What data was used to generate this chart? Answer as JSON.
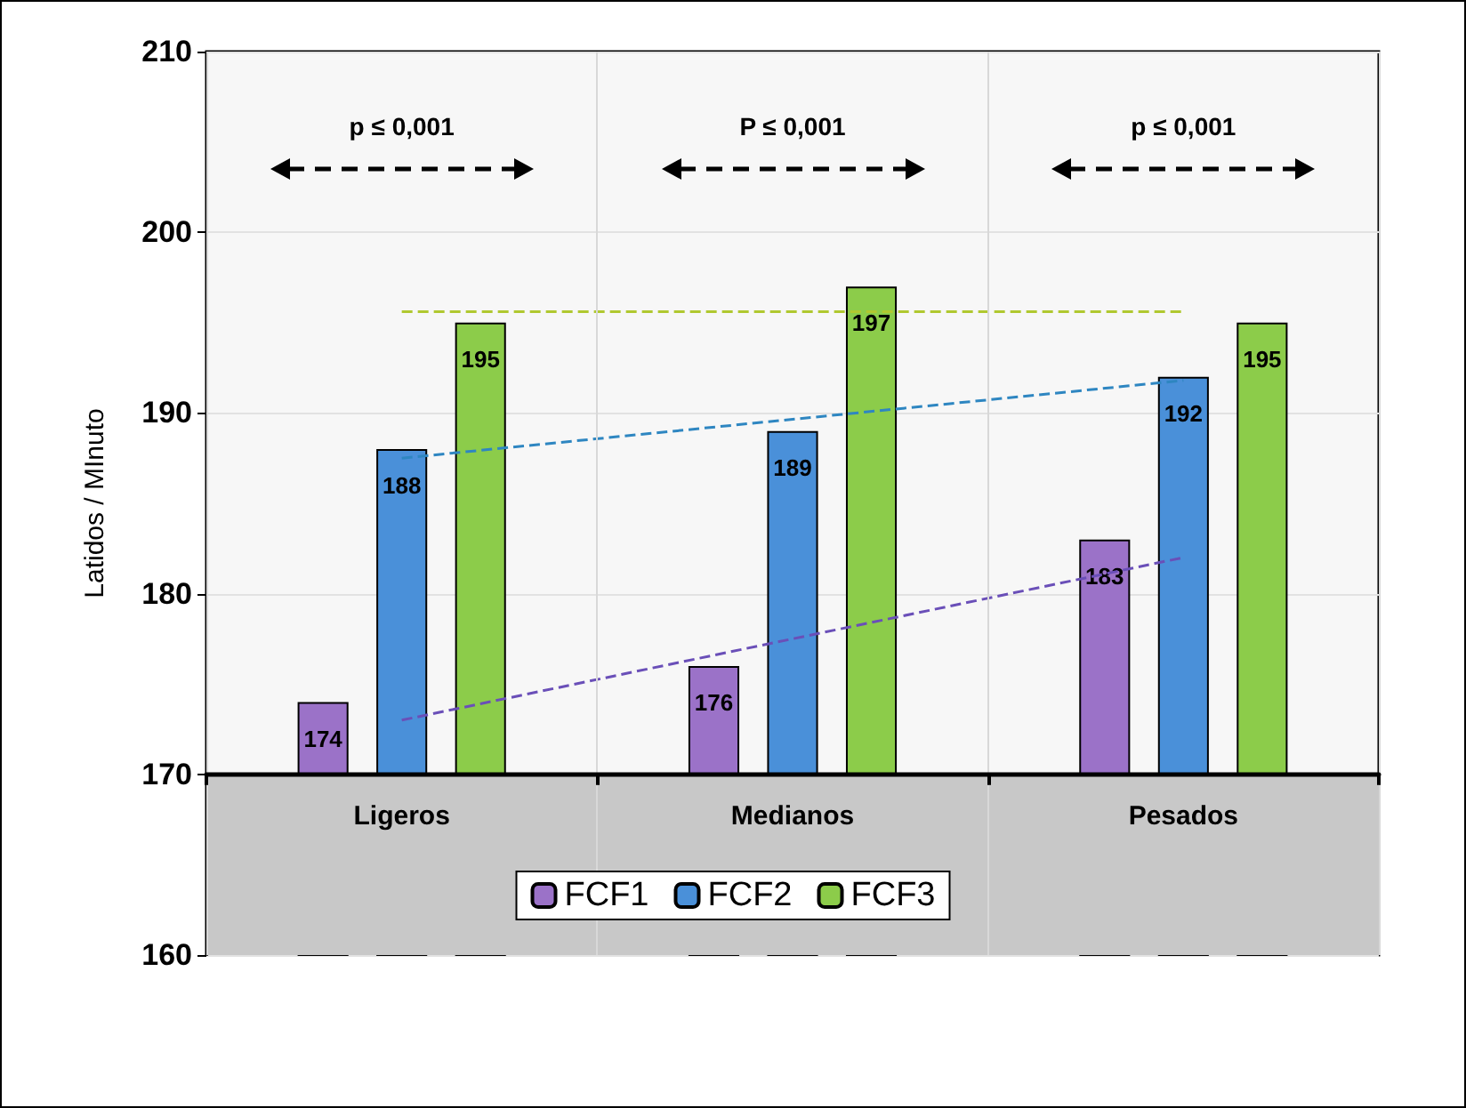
{
  "chart_data": {
    "type": "bar",
    "ylabel": "Latidos / MInuto",
    "categories": [
      "Ligeros",
      "Medianos",
      "Pesados"
    ],
    "series": [
      {
        "name": "FCF1",
        "color": "#9b72c8",
        "values": [
          174,
          176,
          183
        ],
        "value_labels": [
          "174",
          "176",
          "183"
        ]
      },
      {
        "name": "FCF2",
        "color": "#4a90d9",
        "values": [
          188,
          189,
          192
        ],
        "value_labels": [
          "188",
          "189",
          "192"
        ]
      },
      {
        "name": "FCF3",
        "color": "#8ccc4a",
        "values": [
          195,
          197,
          195
        ],
        "value_labels": [
          "195",
          "197",
          "195"
        ]
      },
      {
        "type": "line",
        "color": "#6a4fb8",
        "x": [
          "Ligeros",
          "Pesados"
        ],
        "values": [
          173,
          182
        ],
        "line_style": "dashed",
        "marker": "none"
      },
      {
        "type": "line",
        "color": "#2e86c1",
        "x": [
          "Ligeros",
          "Pesados"
        ],
        "values": [
          187.5,
          191.8
        ],
        "line_style": "dashed",
        "marker": "none"
      },
      {
        "type": "line",
        "color": "#b0c830",
        "x": [
          "Ligeros",
          "Pesados"
        ],
        "values": [
          195.6,
          195.6
        ],
        "line_style": "dashed",
        "marker": "none"
      }
    ],
    "ylim": [
      160,
      210
    ],
    "yticks": [
      160,
      170,
      180,
      190,
      200,
      210
    ],
    "bands": [
      {
        "axis": "y",
        "from": 160,
        "to": 170,
        "color": "#c8c8c8"
      }
    ],
    "annotations": [
      "p ≤ 0,001",
      "P ≤ 0,001",
      "p ≤ 0,001"
    ],
    "grid": true,
    "legend": "bottom"
  }
}
